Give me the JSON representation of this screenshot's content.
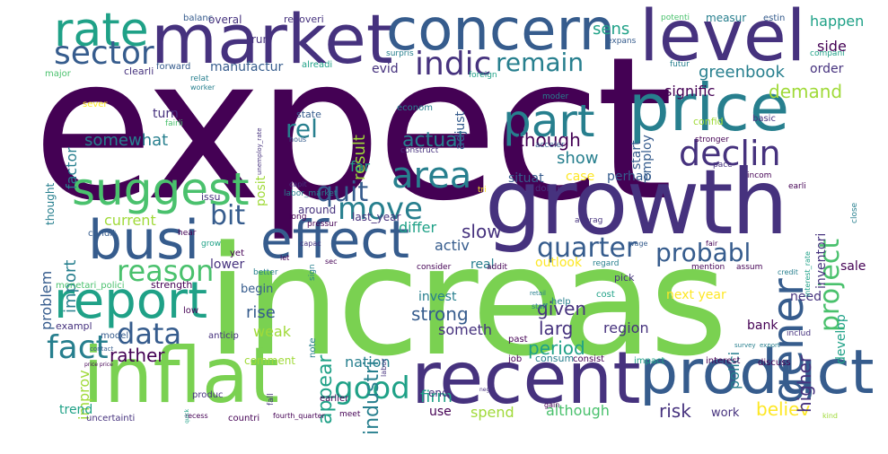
{
  "palette": {
    "background": "#ffffff",
    "colors": [
      "#440154",
      "#46327e",
      "#365c8d",
      "#277f8e",
      "#1fa187",
      "#4ac16d",
      "#a0da39",
      "#fde725"
    ]
  },
  "words": {
    "expect": "expect",
    "increas": "increas",
    "growth": "growth",
    "market": "market",
    "concern": "concern",
    "level": "level",
    "price": "price",
    "inflat": "inflat",
    "recent": "recent",
    "product": "product",
    "busi": "busi",
    "effect": "effect",
    "report": "report",
    "rate": "rate",
    "sector": "sector",
    "suggest": "suggest",
    "part": "part",
    "area": "area",
    "declin": "declin",
    "gener": "gener",
    "project": "project",
    "probabl": "probabl",
    "quarter": "quarter",
    "indic": "indic",
    "remain": "remain",
    "reason": "reason",
    "data": "data",
    "fact": "fact",
    "good": "good",
    "move": "move",
    "quit": "quit",
    "bit": "bit",
    "rel": "rel",
    "actual": "actual",
    "though": "though",
    "show": "show",
    "demand": "demand",
    "signific": "signific",
    "greenbook": "greenbook",
    "somewhat": "somewhat",
    "current": "current",
    "import": "import",
    "problem": "problem",
    "improv": "improv",
    "rather": "rather",
    "industri": "industri",
    "appear": "appear",
    "strong": "strong",
    "given": "given",
    "period": "period",
    "larg": "larg",
    "region": "region",
    "risk": "risk",
    "believ": "believ",
    "higher": "higher",
    "polici": "polici",
    "develop": "develop",
    "inventori": "inventori",
    "sens": "sens",
    "side": "side",
    "happen": "happen",
    "order": "order",
    "result": "result",
    "posit": "posit",
    "slow": "slow",
    "differ": "differ",
    "activ": "activ",
    "lower": "lower",
    "rise": "rise",
    "weak": "weak",
    "firm": "firm",
    "spend": "spend",
    "although": "although",
    "use": "use",
    "work": "work",
    "outlook": "outlook",
    "case": "case",
    "perhap": "perhap",
    "situat": "situat",
    "far": "far",
    "around": "around",
    "last_year": "last_year",
    "begin": "begin",
    "invest": "invest",
    "someth": "someth",
    "next_year": "next year",
    "need": "need",
    "bank": "bank",
    "sale": "sale",
    "manufactur": "manufactur",
    "turn": "turn",
    "factor": "factor",
    "thought": "thought",
    "comment": "comment",
    "nation": "nation",
    "trend": "trend",
    "uncertainti": "uncertainti",
    "countri": "countri",
    "end": "end",
    "real": "real",
    "start": "start",
    "employ": "employ",
    "adjust": "adjust",
    "evid": "evid",
    "overal": "overal",
    "run": "run",
    "recoveri": "recoveri",
    "balanc": "balanc",
    "potenti": "potenti",
    "measur": "measur",
    "estin": "estin",
    "expans": "expans",
    "surpris": "surpris",
    "compani": "compani",
    "clearli": "clearli",
    "alreadi": "alreadi",
    "major": "major",
    "forward": "forward",
    "futur": "futur",
    "sever": "sever",
    "fairli": "fairli",
    "relat": "relat",
    "worker": "worker",
    "foreign": "foreign",
    "econom": "econom",
    "moder": "moder",
    "state": "state",
    "hous": "hous",
    "construct": "construct",
    "acceler": "acceler",
    "stronger": "stronger",
    "confid": "confid",
    "basic": "basic",
    "pace": "pace",
    "incom": "incom",
    "earli": "earli",
    "close": "close",
    "unemploy_rate": "unemploy_rate",
    "interest_rate": "interest_rate",
    "issu": "issu",
    "capit": "capit",
    "tri": "tri",
    "dollar": "dollar",
    "labor_market": "labor_market",
    "long": "long",
    "pressur": "pressur",
    "condit": "condit",
    "hear": "hear",
    "capac": "capac",
    "wage": "wage",
    "yet": "yet",
    "averag": "averag",
    "grow": "grow",
    "sign": "sign",
    "let": "let",
    "sec": "sec",
    "consider": "consider",
    "addit": "addit",
    "regard": "regard",
    "fair": "fair",
    "mention": "mention",
    "assum": "assum",
    "credit": "credit",
    "pick": "pick",
    "better": "better",
    "strength": "strength",
    "monetari_polici": "monetari_polici",
    "retail": "retail",
    "help": "help",
    "cost": "cost",
    "staff": "staff",
    "low": "low",
    "exampl": "exampl",
    "model": "model",
    "anticip": "anticip",
    "note": "note",
    "past": "past",
    "contact": "contact",
    "price_price": "price price",
    "labor": "labor",
    "job": "job",
    "consum": "consum",
    "consist": "consist",
    "impact": "impact",
    "interest": "interest",
    "discuss": "discuss",
    "export": "export",
    "includ": "includ",
    "survey": "survey",
    "produc": "produc",
    "fall": "fall",
    "earlier": "earlier",
    "recess": "recess",
    "fourth_quarter": "fourth_quarter",
    "meet": "meet",
    "gain": "gain",
    "kind": "kind",
    "quick": "quick",
    "neg": "neg"
  }
}
